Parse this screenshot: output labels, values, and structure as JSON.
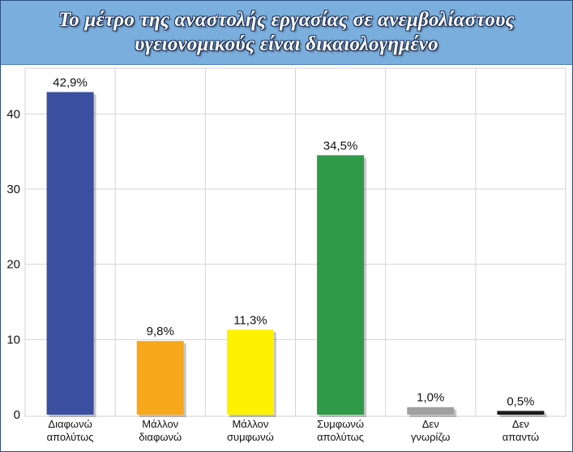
{
  "title": {
    "line1": "Το μέτρο της αναστολής εργασίας σε ανεμβολίαστους",
    "line2": "υγειονομικούς είναι δικαιολογημένο"
  },
  "chart_data": {
    "type": "bar",
    "categories": [
      [
        "Διαφωνώ",
        "απολύτως"
      ],
      [
        "Μάλλον",
        "διαφωνώ"
      ],
      [
        "Μάλλον",
        "συμφωνώ"
      ],
      [
        "Συμφωνώ",
        "απολύτως"
      ],
      [
        "Δεν",
        "γνωρίζω"
      ],
      [
        "Δεν",
        "απαντώ"
      ]
    ],
    "values": [
      42.9,
      9.8,
      11.3,
      34.5,
      1.0,
      0.5
    ],
    "data_labels": [
      "42,9%",
      "9,8%",
      "11,3%",
      "34,5%",
      "1,0%",
      "0,5%"
    ],
    "colors": [
      "#3a4fa0",
      "#f6a81a",
      "#fff200",
      "#2f9a48",
      "#a0a0a0",
      "#1a1a1a"
    ],
    "ylim": [
      0,
      45
    ],
    "yticks": [
      0,
      10,
      20,
      30,
      40
    ],
    "grid": true,
    "xlabel": "",
    "ylabel": ""
  }
}
